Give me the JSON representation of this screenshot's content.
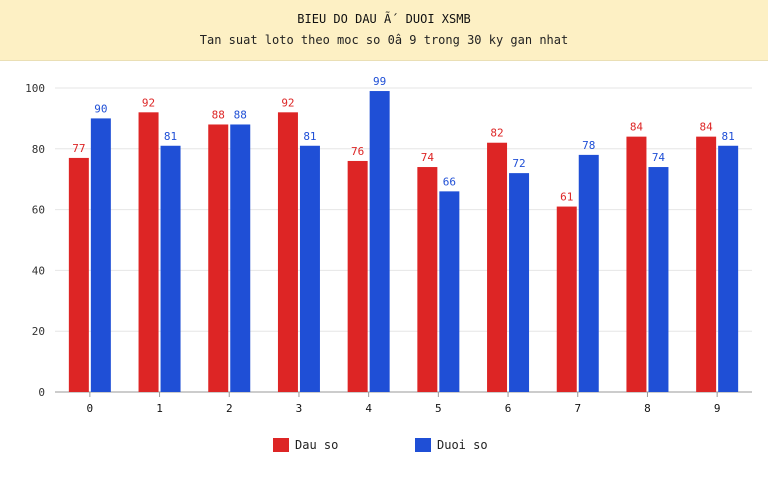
{
  "header": {
    "title": "BIEU DO DAU Ã´ DUOI XSMB",
    "subtitle": "Tan suat loto theo moc so 0â  9 trong 30 ky gan nhat"
  },
  "chart_data": {
    "type": "bar",
    "categories": [
      "0",
      "1",
      "2",
      "3",
      "4",
      "5",
      "6",
      "7",
      "8",
      "9"
    ],
    "series": [
      {
        "name": "Dau so",
        "color": "#dd2525",
        "values": [
          77,
          92,
          88,
          92,
          76,
          74,
          82,
          61,
          84,
          84
        ]
      },
      {
        "name": "Duoi so",
        "color": "#1f4fd6",
        "values": [
          90,
          81,
          88,
          81,
          99,
          66,
          72,
          78,
          74,
          81
        ]
      }
    ],
    "yticks": [
      0,
      20,
      40,
      60,
      80,
      100
    ],
    "ylim": [
      0,
      100
    ],
    "grid": true,
    "legend": "bottom-center"
  }
}
